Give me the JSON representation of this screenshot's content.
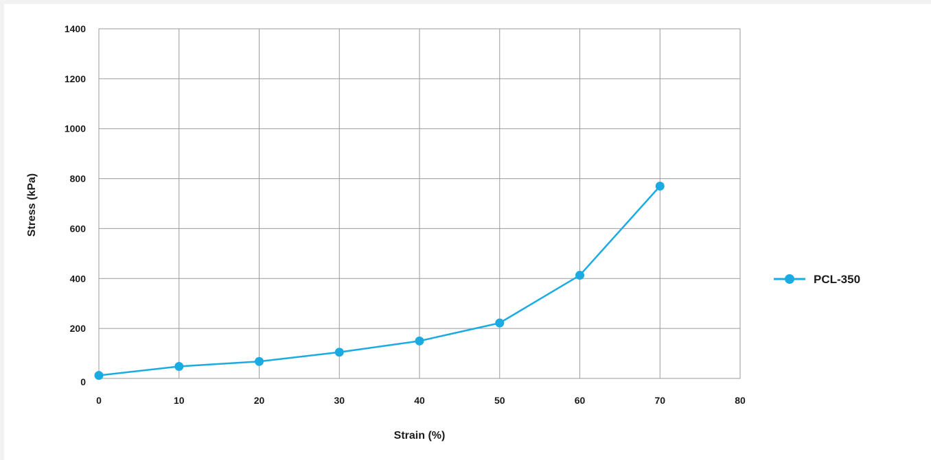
{
  "chart_data": {
    "type": "line",
    "xlabel": "Strain (%)",
    "ylabel": "Stress (kPa)",
    "xlim": [
      0,
      80
    ],
    "ylim": [
      0,
      1400
    ],
    "x_ticks": [
      0,
      10,
      20,
      30,
      40,
      50,
      60,
      70,
      80
    ],
    "y_ticks": [
      0,
      200,
      400,
      600,
      800,
      1000,
      1200,
      1400
    ],
    "grid": true,
    "legend_position": "right",
    "series": [
      {
        "name": "PCL-350",
        "color": "#1aabe3",
        "x": [
          0,
          10,
          20,
          30,
          40,
          50,
          60,
          70
        ],
        "y": [
          12,
          48,
          68,
          105,
          150,
          222,
          413,
          770
        ]
      }
    ]
  }
}
